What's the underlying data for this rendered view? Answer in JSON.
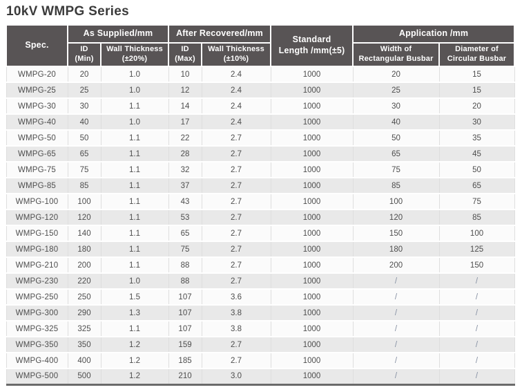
{
  "page": {
    "title": "10kV WMPG Series"
  },
  "colors": {
    "header_background": "#585455",
    "header_text": "#ffffff",
    "row_odd": "#fbfbfb",
    "row_even": "#e9e9e9",
    "table_bottom_border": "#6a6a6a",
    "data_text": "#4d4d4d",
    "slash_text": "#8791a3",
    "title_text": "#3b3b3b"
  },
  "table": {
    "header": {
      "spec": "Spec.",
      "as_supplied": "As Supplied/mm",
      "after_recovered": "After Recovered/mm",
      "standard_length": "Standard\nLength /mm(±5)",
      "application": "Application /mm",
      "id_min": "ID\n(Min)",
      "wall_supplied": "Wall Thickness\n(±20%)",
      "id_max": "ID\n(Max)",
      "wall_recovered": "Wall Thickness\n(±10%)",
      "busbar_width": "Width of\nRectangular Busbar",
      "busbar_diameter": "Diameter of\nCircular Busbar"
    },
    "rows": [
      {
        "spec": "WMPG-20",
        "id_min": "20",
        "wall_supplied": "1.0",
        "id_max": "10",
        "wall_recovered": "2.4",
        "standard_length": "1000",
        "busbar_width": "20",
        "busbar_diameter": "15"
      },
      {
        "spec": "WMPG-25",
        "id_min": "25",
        "wall_supplied": "1.0",
        "id_max": "12",
        "wall_recovered": "2.4",
        "standard_length": "1000",
        "busbar_width": "25",
        "busbar_diameter": "15"
      },
      {
        "spec": "WMPG-30",
        "id_min": "30",
        "wall_supplied": "1.1",
        "id_max": "14",
        "wall_recovered": "2.4",
        "standard_length": "1000",
        "busbar_width": "30",
        "busbar_diameter": "20"
      },
      {
        "spec": "WMPG-40",
        "id_min": "40",
        "wall_supplied": "1.0",
        "id_max": "17",
        "wall_recovered": "2.4",
        "standard_length": "1000",
        "busbar_width": "40",
        "busbar_diameter": "30"
      },
      {
        "spec": "WMPG-50",
        "id_min": "50",
        "wall_supplied": "1.1",
        "id_max": "22",
        "wall_recovered": "2.7",
        "standard_length": "1000",
        "busbar_width": "50",
        "busbar_diameter": "35"
      },
      {
        "spec": "WMPG-65",
        "id_min": "65",
        "wall_supplied": "1.1",
        "id_max": "28",
        "wall_recovered": "2.7",
        "standard_length": "1000",
        "busbar_width": "65",
        "busbar_diameter": "45"
      },
      {
        "spec": "WMPG-75",
        "id_min": "75",
        "wall_supplied": "1.1",
        "id_max": "32",
        "wall_recovered": "2.7",
        "standard_length": "1000",
        "busbar_width": "75",
        "busbar_diameter": "50"
      },
      {
        "spec": "WMPG-85",
        "id_min": "85",
        "wall_supplied": "1.1",
        "id_max": "37",
        "wall_recovered": "2.7",
        "standard_length": "1000",
        "busbar_width": "85",
        "busbar_diameter": "65"
      },
      {
        "spec": "WMPG-100",
        "id_min": "100",
        "wall_supplied": "1.1",
        "id_max": "43",
        "wall_recovered": "2.7",
        "standard_length": "1000",
        "busbar_width": "100",
        "busbar_diameter": "75"
      },
      {
        "spec": "WMPG-120",
        "id_min": "120",
        "wall_supplied": "1.1",
        "id_max": "53",
        "wall_recovered": "2.7",
        "standard_length": "1000",
        "busbar_width": "120",
        "busbar_diameter": "85"
      },
      {
        "spec": "WMPG-150",
        "id_min": "140",
        "wall_supplied": "1.1",
        "id_max": "65",
        "wall_recovered": "2.7",
        "standard_length": "1000",
        "busbar_width": "150",
        "busbar_diameter": "100"
      },
      {
        "spec": "WMPG-180",
        "id_min": "180",
        "wall_supplied": "1.1",
        "id_max": "75",
        "wall_recovered": "2.7",
        "standard_length": "1000",
        "busbar_width": "180",
        "busbar_diameter": "125"
      },
      {
        "spec": "WMPG-210",
        "id_min": "200",
        "wall_supplied": "1.1",
        "id_max": "88",
        "wall_recovered": "2.7",
        "standard_length": "1000",
        "busbar_width": "200",
        "busbar_diameter": "150"
      },
      {
        "spec": "WMPG-230",
        "id_min": "220",
        "wall_supplied": "1.0",
        "id_max": "88",
        "wall_recovered": "2.7",
        "standard_length": "1000",
        "busbar_width": "/",
        "busbar_diameter": "/"
      },
      {
        "spec": "WMPG-250",
        "id_min": "250",
        "wall_supplied": "1.5",
        "id_max": "107",
        "wall_recovered": "3.6",
        "standard_length": "1000",
        "busbar_width": "/",
        "busbar_diameter": "/"
      },
      {
        "spec": "WMPG-300",
        "id_min": "290",
        "wall_supplied": "1.3",
        "id_max": "107",
        "wall_recovered": "3.8",
        "standard_length": "1000",
        "busbar_width": "/",
        "busbar_diameter": "/"
      },
      {
        "spec": "WMPG-325",
        "id_min": "325",
        "wall_supplied": "1.1",
        "id_max": "107",
        "wall_recovered": "3.8",
        "standard_length": "1000",
        "busbar_width": "/",
        "busbar_diameter": "/"
      },
      {
        "spec": "WMPG-350",
        "id_min": "350",
        "wall_supplied": "1.2",
        "id_max": "159",
        "wall_recovered": "2.7",
        "standard_length": "1000",
        "busbar_width": "/",
        "busbar_diameter": "/"
      },
      {
        "spec": "WMPG-400",
        "id_min": "400",
        "wall_supplied": "1.2",
        "id_max": "185",
        "wall_recovered": "2.7",
        "standard_length": "1000",
        "busbar_width": "/",
        "busbar_diameter": "/"
      },
      {
        "spec": "WMPG-500",
        "id_min": "500",
        "wall_supplied": "1.2",
        "id_max": "210",
        "wall_recovered": "3.0",
        "standard_length": "1000",
        "busbar_width": "/",
        "busbar_diameter": "/"
      }
    ]
  }
}
